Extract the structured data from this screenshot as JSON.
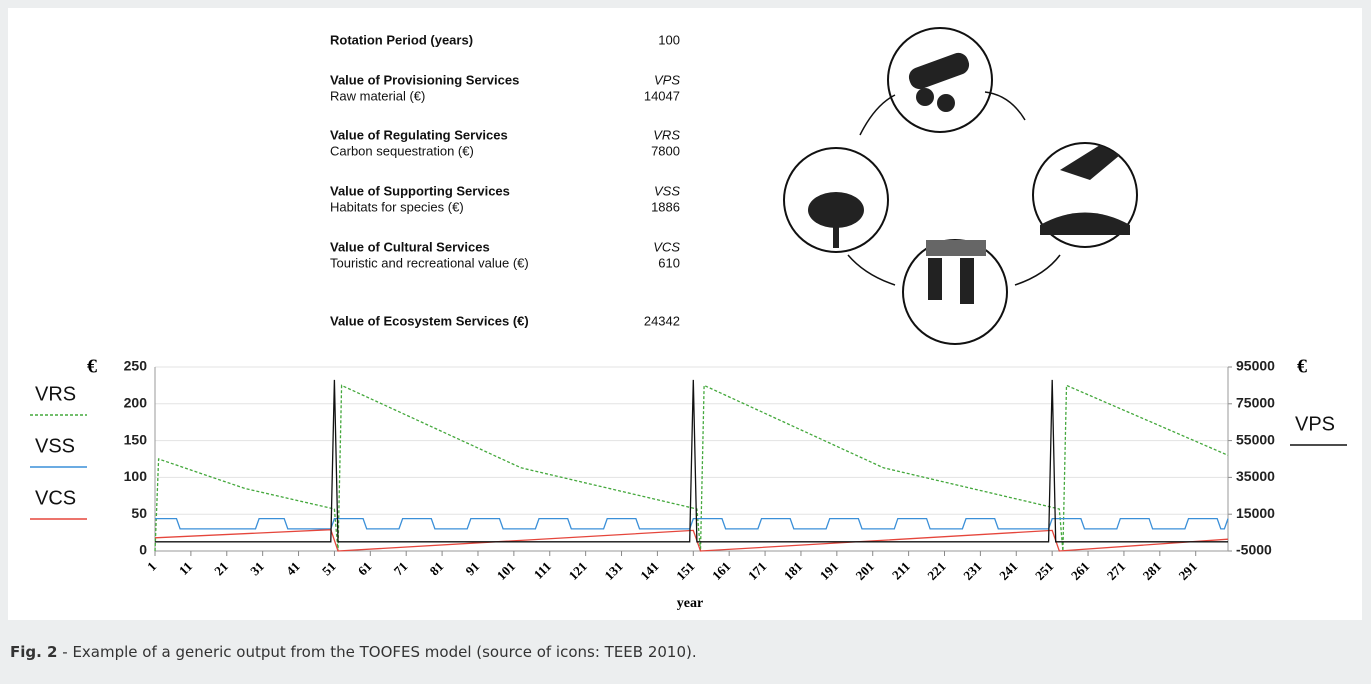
{
  "table": {
    "rotation": {
      "label": "Rotation Period (years)",
      "value": "100"
    },
    "groups": [
      {
        "heading": "Value of Provisioning Services",
        "code": "VPS",
        "item": "Raw material (€)",
        "value": "14047"
      },
      {
        "heading": "Value of Regulating Services",
        "code": "VRS",
        "item": "Carbon sequestration (€)",
        "value": "7800"
      },
      {
        "heading": "Value of Supporting Services",
        "code": "VSS",
        "item": "Habitats for species (€)",
        "value": "1886"
      },
      {
        "heading": "Value of Cultural Services",
        "code": "VCS",
        "item": "Touristic and recreational value (€)",
        "value": "610"
      }
    ],
    "total": {
      "label": "Value of Ecosystem Services (€)",
      "value": "24342"
    }
  },
  "chart_data": {
    "type": "line",
    "xlabel": "year",
    "ylabel": "€",
    "y2label": "€",
    "xlim": [
      1,
      300
    ],
    "xticks": [
      1,
      11,
      21,
      31,
      41,
      51,
      61,
      71,
      81,
      91,
      101,
      111,
      121,
      131,
      141,
      151,
      161,
      171,
      181,
      191,
      201,
      211,
      221,
      231,
      241,
      251,
      261,
      271,
      281,
      291
    ],
    "ylim": [
      0,
      250
    ],
    "yticks": [
      0,
      50,
      100,
      150,
      200,
      250
    ],
    "y2lim": [
      -5000,
      95000
    ],
    "y2ticks": [
      -5000,
      15000,
      35000,
      55000,
      75000,
      95000
    ],
    "grid": true,
    "series": [
      {
        "name": "VRS",
        "color": "#44a83c",
        "dash": "dotted",
        "x": [
          1,
          2,
          26,
          51,
          52,
          53,
          103,
          152,
          153,
          154,
          204,
          253,
          254,
          255,
          300
        ],
        "values": [
          0,
          125,
          85,
          57,
          0,
          225,
          113,
          57,
          0,
          225,
          113,
          57,
          0,
          225,
          130
        ]
      },
      {
        "name": "VSS",
        "color": "#3a8fd8",
        "dash": "solid",
        "x": [
          1,
          7,
          8,
          29,
          30,
          37,
          38,
          50,
          51,
          59,
          60,
          69,
          70,
          78,
          79,
          88,
          89,
          97,
          98,
          107,
          108,
          116,
          117,
          126,
          127,
          135,
          136,
          150,
          151,
          159,
          160,
          169,
          170,
          178,
          179,
          188,
          189,
          197,
          198,
          207,
          208,
          216,
          217,
          226,
          227,
          235,
          236,
          250,
          251,
          259,
          260,
          269,
          270,
          278,
          279,
          288,
          289,
          297,
          298,
          299,
          300
        ],
        "values": [
          44,
          44,
          30,
          30,
          44,
          44,
          30,
          30,
          44,
          44,
          30,
          30,
          44,
          44,
          30,
          30,
          44,
          44,
          30,
          30,
          44,
          44,
          30,
          30,
          44,
          44,
          30,
          30,
          44,
          44,
          30,
          30,
          44,
          44,
          30,
          30,
          44,
          44,
          30,
          30,
          44,
          44,
          30,
          30,
          44,
          44,
          30,
          30,
          44,
          44,
          30,
          30,
          44,
          44,
          30,
          30,
          44,
          44,
          30,
          30,
          44
        ]
      },
      {
        "name": "VCS",
        "color": "#e5463c",
        "dash": "solid",
        "x": [
          1,
          50,
          52,
          151,
          153,
          251,
          253,
          300
        ],
        "values": [
          18,
          29,
          0,
          28,
          0,
          28,
          0,
          16
        ]
      },
      {
        "name": "VPS",
        "color": "#111111",
        "dash": "solid",
        "axis": "y2",
        "x": [
          1,
          50,
          51,
          52,
          150,
          151,
          152,
          250,
          251,
          252,
          300
        ],
        "values": [
          0,
          0,
          88000,
          0,
          0,
          88000,
          0,
          0,
          88000,
          0,
          0
        ]
      }
    ]
  },
  "caption": {
    "label": "Fig. 2",
    "text": "- Example of a generic output from the TOOFES model (source of icons: TEEB 2010)."
  }
}
